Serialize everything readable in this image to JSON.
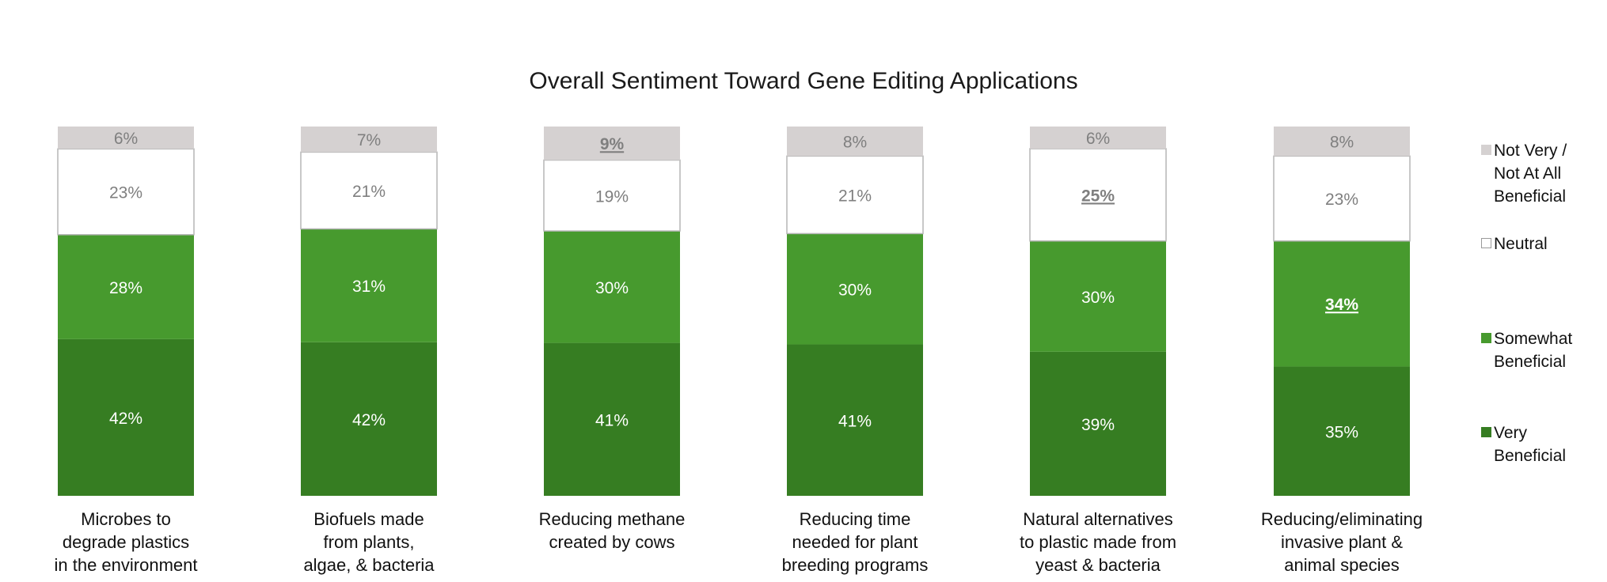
{
  "chart_data": {
    "type": "bar",
    "stacked": true,
    "title": "Overall Sentiment Toward Gene Editing Applications",
    "categories": [
      "Microbes to\ndegrade plastics\nin the environment",
      "Biofuels made\nfrom plants,\nalgae, & bacteria",
      "Reducing methane\ncreated by cows",
      "Reducing time\nneeded for plant\nbreeding programs",
      "Natural alternatives\nto plastic made from\nyeast & bacteria",
      "Reducing/eliminating\ninvasive plant &\nanimal species"
    ],
    "series": [
      {
        "name": "Very\nBeneficial",
        "color": "#367d22",
        "text_color": "#ffffff",
        "values": [
          42,
          42,
          41,
          41,
          39,
          35
        ],
        "labels": [
          "42%",
          "42%",
          "41%",
          "41%",
          "39%",
          "35%"
        ]
      },
      {
        "name": "Somewhat\nBeneficial",
        "color": "#479a2e",
        "text_color": "#ffffff",
        "values": [
          28,
          31,
          30,
          30,
          30,
          34
        ],
        "labels": [
          "28%",
          "31%",
          "30%",
          "30%",
          "30%",
          "34%"
        ],
        "highlight": [
          5
        ]
      },
      {
        "name": "Neutral",
        "color": "#ffffff",
        "text_color": "#7f7f7f",
        "values": [
          23,
          21,
          19,
          21,
          25,
          23
        ],
        "labels": [
          "23%",
          "21%",
          "19%",
          "21%",
          "25%",
          "23%"
        ],
        "highlight": [
          4
        ]
      },
      {
        "name": "Not Very /\nNot At All\nBeneficial",
        "color": "#d5d1d1",
        "text_color": "#7f7f7f",
        "values": [
          6,
          7,
          9,
          8,
          6,
          8
        ],
        "labels": [
          "6%",
          "7%",
          "9%",
          "8%",
          "6%",
          "8%"
        ],
        "highlight": [
          2
        ]
      }
    ],
    "ylim": [
      0,
      100
    ],
    "legend_position": "right",
    "grid": false
  }
}
